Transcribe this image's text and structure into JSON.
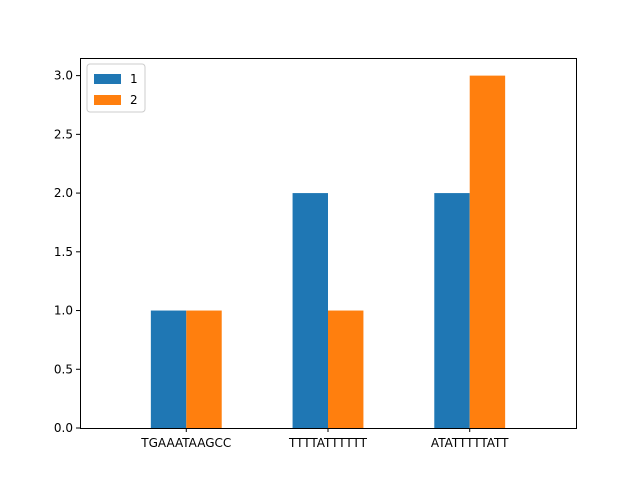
{
  "chart_data": {
    "type": "bar",
    "title": "",
    "xlabel": "",
    "ylabel": "",
    "categories": [
      "TGAAATAAGCC",
      "TTTTATTTTTT",
      "ATATTTTTATT"
    ],
    "series": [
      {
        "name": "1",
        "values": [
          1,
          2,
          2
        ],
        "color": "#1f77b4"
      },
      {
        "name": "2",
        "values": [
          1,
          1,
          3
        ],
        "color": "#ff7f0e"
      }
    ],
    "ylim": [
      0,
      3.15
    ],
    "yticks": [
      0.0,
      0.5,
      1.0,
      1.5,
      2.0,
      2.5,
      3.0
    ],
    "ytick_labels": [
      "0.0",
      "0.5",
      "1.0",
      "1.5",
      "2.0",
      "2.5",
      "3.0"
    ],
    "grid": false,
    "legend_position": "top-left"
  }
}
